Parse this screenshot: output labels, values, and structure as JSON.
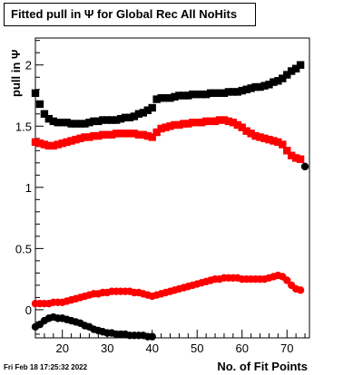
{
  "title": "Fitted pull in  Ψ  for Global Rec All NoHits",
  "timestamp": "Fri Feb 18 17:25:32 2022",
  "chart_data": {
    "type": "scatter",
    "title": "Fitted pull in  Ψ  for Global Rec All NoHits",
    "xlabel": "No. of Fit Points",
    "ylabel": "pull in  Ψ",
    "xlim": [
      14,
      75
    ],
    "ylim": [
      -0.23,
      2.22
    ],
    "xticks": [
      20,
      30,
      40,
      50,
      60,
      70
    ],
    "yticks": [
      0,
      0.5,
      1,
      1.5,
      2
    ],
    "xtick_labels": [
      "20",
      "30",
      "40",
      "50",
      "60",
      "70"
    ],
    "ytick_labels": [
      "0",
      "0.5",
      "1",
      "1.5",
      "2"
    ],
    "grid": false,
    "series": [
      {
        "color": "#000000",
        "marker": "square",
        "x": [
          14,
          15,
          16,
          17,
          18,
          19,
          20,
          21,
          22,
          23,
          24,
          25,
          26,
          27,
          28,
          29,
          30,
          31,
          32,
          33,
          34,
          35,
          36,
          37,
          38,
          39,
          40,
          41,
          42,
          43,
          44,
          45,
          46,
          47,
          48,
          49,
          50,
          51,
          52,
          53,
          54,
          55,
          56,
          57,
          58,
          59,
          60,
          61,
          62,
          63,
          64,
          65,
          66,
          67,
          68,
          69,
          70,
          71,
          72,
          73
        ],
        "values": [
          1.77,
          1.68,
          1.6,
          1.56,
          1.54,
          1.53,
          1.53,
          1.53,
          1.52,
          1.52,
          1.52,
          1.52,
          1.53,
          1.54,
          1.54,
          1.55,
          1.55,
          1.55,
          1.55,
          1.56,
          1.57,
          1.57,
          1.58,
          1.6,
          1.61,
          1.63,
          1.65,
          1.72,
          1.73,
          1.73,
          1.73,
          1.74,
          1.75,
          1.75,
          1.75,
          1.76,
          1.76,
          1.76,
          1.76,
          1.77,
          1.77,
          1.77,
          1.77,
          1.78,
          1.78,
          1.78,
          1.79,
          1.8,
          1.81,
          1.82,
          1.82,
          1.83,
          1.84,
          1.86,
          1.87,
          1.89,
          1.92,
          1.95,
          1.97,
          2.0
        ]
      },
      {
        "color": "#ff0000",
        "marker": "square",
        "x": [
          14,
          15,
          16,
          17,
          18,
          19,
          20,
          21,
          22,
          23,
          24,
          25,
          26,
          27,
          28,
          29,
          30,
          31,
          32,
          33,
          34,
          35,
          36,
          37,
          38,
          39,
          40,
          41,
          42,
          43,
          44,
          45,
          46,
          47,
          48,
          49,
          50,
          51,
          52,
          53,
          54,
          55,
          56,
          57,
          58,
          59,
          60,
          61,
          62,
          63,
          64,
          65,
          66,
          67,
          68,
          69,
          70,
          71,
          72,
          73
        ],
        "values": [
          1.37,
          1.36,
          1.35,
          1.34,
          1.34,
          1.35,
          1.36,
          1.37,
          1.38,
          1.39,
          1.4,
          1.41,
          1.41,
          1.42,
          1.42,
          1.43,
          1.43,
          1.43,
          1.44,
          1.44,
          1.44,
          1.44,
          1.44,
          1.43,
          1.43,
          1.42,
          1.41,
          1.45,
          1.48,
          1.49,
          1.5,
          1.51,
          1.51,
          1.52,
          1.52,
          1.53,
          1.53,
          1.53,
          1.54,
          1.54,
          1.54,
          1.55,
          1.55,
          1.54,
          1.53,
          1.51,
          1.49,
          1.46,
          1.44,
          1.42,
          1.41,
          1.4,
          1.39,
          1.38,
          1.37,
          1.35,
          1.3,
          1.26,
          1.24,
          1.23
        ]
      },
      {
        "color": "#000000",
        "marker": "circle",
        "x": [
          74
        ],
        "values": [
          1.17
        ]
      },
      {
        "color": "#ff0000",
        "marker": "circle",
        "x": [
          14,
          15,
          16,
          17,
          18,
          19,
          20,
          21,
          22,
          23,
          24,
          25,
          26,
          27,
          28,
          29,
          30,
          31,
          32,
          33,
          34,
          35,
          36,
          37,
          38,
          39,
          40,
          41,
          42,
          43,
          44,
          45,
          46,
          47,
          48,
          49,
          50,
          51,
          52,
          53,
          54,
          55,
          56,
          57,
          58,
          59,
          60,
          61,
          62,
          63,
          64,
          65,
          66,
          67,
          68,
          69,
          70,
          71,
          72,
          73
        ],
        "values": [
          0.05,
          0.05,
          0.05,
          0.05,
          0.06,
          0.06,
          0.06,
          0.07,
          0.08,
          0.09,
          0.1,
          0.11,
          0.12,
          0.13,
          0.13,
          0.14,
          0.14,
          0.15,
          0.15,
          0.15,
          0.15,
          0.15,
          0.14,
          0.14,
          0.13,
          0.12,
          0.11,
          0.12,
          0.13,
          0.14,
          0.15,
          0.16,
          0.17,
          0.18,
          0.19,
          0.2,
          0.21,
          0.22,
          0.23,
          0.24,
          0.25,
          0.25,
          0.26,
          0.26,
          0.26,
          0.26,
          0.25,
          0.25,
          0.25,
          0.25,
          0.25,
          0.25,
          0.26,
          0.27,
          0.28,
          0.27,
          0.24,
          0.2,
          0.17,
          0.16
        ]
      },
      {
        "color": "#000000",
        "marker": "circle",
        "x": [
          14,
          15,
          16,
          17,
          18,
          19,
          20,
          21,
          22,
          23,
          24,
          25,
          26,
          27,
          28,
          29,
          30,
          31,
          32,
          33,
          34,
          35,
          36,
          37,
          38,
          39,
          40
        ],
        "values": [
          -0.14,
          -0.12,
          -0.09,
          -0.07,
          -0.06,
          -0.07,
          -0.07,
          -0.08,
          -0.09,
          -0.1,
          -0.11,
          -0.13,
          -0.14,
          -0.16,
          -0.17,
          -0.18,
          -0.19,
          -0.19,
          -0.2,
          -0.2,
          -0.2,
          -0.21,
          -0.21,
          -0.21,
          -0.21,
          -0.22,
          -0.22
        ]
      }
    ]
  }
}
